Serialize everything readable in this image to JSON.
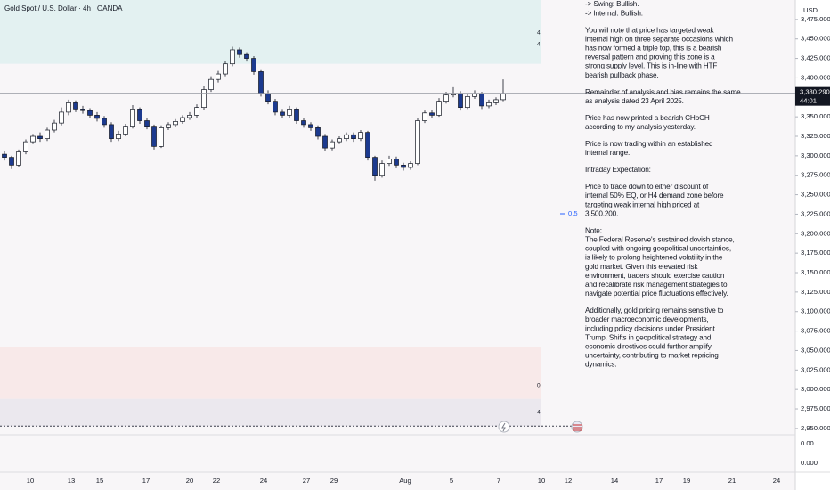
{
  "chart_data": {
    "type": "candlestick",
    "title": "Gold Spot / U.S. Dollar · 4h · OANDA",
    "currency": "USD",
    "ylim": [
      2943,
      3500
    ],
    "yticks": [
      {
        "value": 3475,
        "label": "3,475.000"
      },
      {
        "value": 3450,
        "label": "3,450.000"
      },
      {
        "value": 3425,
        "label": "3,425.000"
      },
      {
        "value": 3400,
        "label": "3,400.000"
      },
      {
        "value": 3350,
        "label": "3,350.000"
      },
      {
        "value": 3325,
        "label": "3,325.000"
      },
      {
        "value": 3300,
        "label": "3,300.000"
      },
      {
        "value": 3275,
        "label": "3,275.000"
      },
      {
        "value": 3250,
        "label": "3,250.000"
      },
      {
        "value": 3225,
        "label": "3,225.000"
      },
      {
        "value": 3200,
        "label": "3,200.000"
      },
      {
        "value": 3175,
        "label": "3,175.000"
      },
      {
        "value": 3150,
        "label": "3,150.000"
      },
      {
        "value": 3125,
        "label": "3,125.000"
      },
      {
        "value": 3100,
        "label": "3,100.000"
      },
      {
        "value": 3075,
        "label": "3,075.000"
      },
      {
        "value": 3050,
        "label": "3,050.000"
      },
      {
        "value": 3025,
        "label": "3,025.000"
      },
      {
        "value": 3000,
        "label": "3,000.000"
      },
      {
        "value": 2975,
        "label": "2,975.000"
      },
      {
        "value": 2950,
        "label": "2,950.000"
      }
    ],
    "lower_pane_labels": [
      "0.00",
      "0.000"
    ],
    "xlabels": [
      "10",
      "13",
      "15",
      "17",
      "20",
      "22",
      "24",
      "27",
      "29",
      "Aug",
      "5",
      "7",
      "10",
      "12",
      "14",
      "17",
      "19",
      "21",
      "24"
    ],
    "last_price": {
      "value": 3380.29,
      "label": "3,380.290"
    },
    "countdown": "44:01",
    "fib_level": 0.5,
    "zones": [
      {
        "top": 3500,
        "bottom": 3418,
        "color": "#e3f1f1",
        "tags": [
          "4",
          "4"
        ]
      },
      {
        "top": 3054,
        "bottom": 2988,
        "color": "#f8e9e9",
        "tags": [
          "0"
        ]
      },
      {
        "top": 2988,
        "bottom": 2953,
        "color": "#ebe8ee",
        "tags": [
          "4"
        ]
      }
    ],
    "up_color": "#ffffff",
    "down_color": "#1c3a8f",
    "wick_color": "#131722",
    "open": [
      3302,
      3298,
      3288,
      3305,
      3318,
      3325,
      3322,
      3333,
      3342,
      3356,
      3368,
      3360,
      3358,
      3352,
      3348,
      3340,
      3322,
      3328,
      3338,
      3360,
      3345,
      3338,
      3312,
      3336,
      3340,
      3344,
      3349,
      3352,
      3362,
      3385,
      3398,
      3405,
      3418,
      3436,
      3430,
      3425,
      3408,
      3380,
      3370,
      3356,
      3352,
      3360,
      3345,
      3340,
      3336,
      3325,
      3310,
      3318,
      3322,
      3327,
      3322,
      3330,
      3298,
      3275,
      3290,
      3296,
      3288,
      3285,
      3290,
      3345,
      3355,
      3352,
      3370,
      3378,
      3380,
      3362,
      3376,
      3380,
      3364,
      3368,
      3372
    ],
    "high": [
      3306,
      3300,
      3308,
      3321,
      3328,
      3330,
      3336,
      3346,
      3362,
      3372,
      3371,
      3364,
      3361,
      3356,
      3351,
      3343,
      3332,
      3341,
      3365,
      3362,
      3348,
      3340,
      3339,
      3343,
      3347,
      3352,
      3356,
      3366,
      3389,
      3402,
      3409,
      3422,
      3440,
      3439,
      3433,
      3428,
      3410,
      3384,
      3373,
      3360,
      3364,
      3362,
      3348,
      3343,
      3339,
      3328,
      3321,
      3325,
      3330,
      3330,
      3333,
      3332,
      3300,
      3294,
      3300,
      3299,
      3291,
      3293,
      3348,
      3358,
      3359,
      3374,
      3382,
      3388,
      3383,
      3379,
      3384,
      3382,
      3372,
      3375,
      3398
    ],
    "low": [
      3294,
      3283,
      3285,
      3302,
      3315,
      3318,
      3319,
      3330,
      3339,
      3352,
      3356,
      3354,
      3348,
      3344,
      3336,
      3318,
      3319,
      3325,
      3335,
      3341,
      3334,
      3308,
      3310,
      3333,
      3337,
      3341,
      3346,
      3349,
      3359,
      3382,
      3394,
      3402,
      3415,
      3426,
      3421,
      3404,
      3376,
      3366,
      3352,
      3348,
      3349,
      3341,
      3336,
      3332,
      3321,
      3306,
      3307,
      3315,
      3319,
      3318,
      3319,
      3294,
      3268,
      3272,
      3287,
      3284,
      3281,
      3282,
      3288,
      3342,
      3348,
      3350,
      3367,
      3375,
      3358,
      3360,
      3373,
      3360,
      3361,
      3365,
      3370
    ],
    "close": [
      3298,
      3288,
      3305,
      3318,
      3325,
      3322,
      3333,
      3342,
      3356,
      3368,
      3360,
      3358,
      3352,
      3348,
      3340,
      3322,
      3328,
      3338,
      3360,
      3345,
      3338,
      3312,
      3336,
      3340,
      3344,
      3349,
      3352,
      3362,
      3385,
      3398,
      3405,
      3418,
      3436,
      3430,
      3425,
      3408,
      3380,
      3370,
      3356,
      3352,
      3360,
      3345,
      3340,
      3336,
      3325,
      3310,
      3318,
      3322,
      3327,
      3322,
      3330,
      3298,
      3275,
      3290,
      3296,
      3288,
      3285,
      3290,
      3345,
      3355,
      3352,
      3370,
      3378,
      3380,
      3362,
      3376,
      3380,
      3364,
      3368,
      3372,
      3380
    ]
  },
  "notes": [
    [
      "-> Swing:  Bullish.",
      "-> Internal:  Bullish."
    ],
    [
      "You will note that price has targeted weak",
      "internal high on three separate occasions which",
      "has now formed a triple top, this is a bearish",
      "reversal pattern and proving this zone is a",
      "strong supply level.  This is in-line with HTF",
      "bearish pullback phase."
    ],
    [
      "Remainder of analysis and bias remains the same",
      "as analysis dated 23 April 2025."
    ],
    [
      "Price has now printed a bearish CHoCH",
      "according to my analysis yesterday."
    ],
    [
      "Price is now trading within an established",
      "internal range."
    ],
    [
      "Intraday Expectation:"
    ],
    [
      "Price to trade down to either discount of",
      "internal 50% EQ, or H4 demand zone before",
      "targeting weak internal high priced at",
      "3,500.200."
    ],
    [
      "Note:",
      "The Federal Reserve's sustained dovish stance,",
      "coupled with ongoing geopolitical uncertainties,",
      "is likely to prolong heightened volatility in the",
      "gold market. Given this elevated risk",
      "environment, traders should exercise caution",
      "and recalibrate risk management strategies to",
      "navigate potential price fluctuations effectively."
    ],
    [
      "Additionally, gold pricing remains sensitive to",
      "broader macroeconomic developments,",
      "including policy decisions under President",
      "Trump. Shifts in geopolitical strategy and",
      "economic directives could further amplify",
      "uncertainty, contributing to market repricing",
      "dynamics."
    ]
  ]
}
